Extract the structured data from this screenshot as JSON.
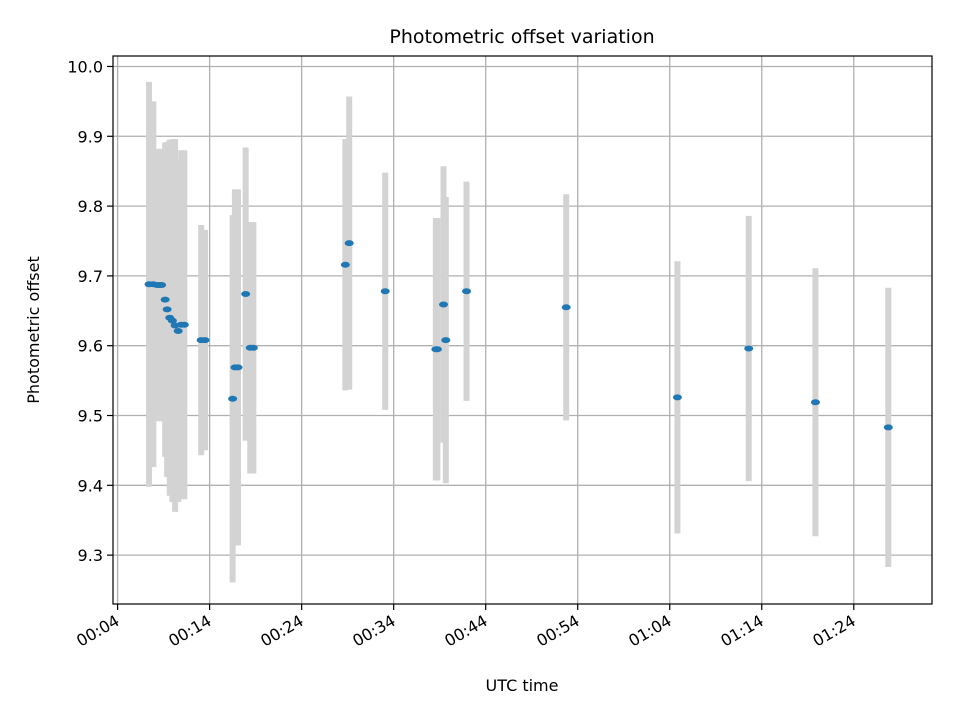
{
  "chart_data": {
    "type": "scatter",
    "title": "Photometric offset variation",
    "xlabel": "UTC time",
    "ylabel": "Photometric offset",
    "x_ticks": [
      "00:04",
      "00:14",
      "00:24",
      "00:34",
      "00:44",
      "00:54",
      "01:04",
      "01:14",
      "01:24"
    ],
    "y_ticks": [
      "9.3",
      "9.4",
      "9.5",
      "9.6",
      "9.7",
      "9.8",
      "9.9",
      "10.0"
    ],
    "xlim": [
      "00:03:30",
      "01:32:30"
    ],
    "ylim": [
      9.23,
      10.015
    ],
    "grid": true,
    "colors": {
      "point": "#1f77b4",
      "errorbar": "#d3d3d3",
      "grid": "#b0b0b0"
    },
    "points": [
      {
        "x": "00:07:25",
        "y": 9.688,
        "err": 0.29
      },
      {
        "x": "00:07:53",
        "y": 9.688,
        "err": 0.262
      },
      {
        "x": "00:08:18",
        "y": 9.687,
        "err": 0.195
      },
      {
        "x": "00:08:33",
        "y": 9.687,
        "err": 0.195
      },
      {
        "x": "00:08:47",
        "y": 9.687,
        "err": 0.195
      },
      {
        "x": "00:09:10",
        "y": 9.666,
        "err": 0.225
      },
      {
        "x": "00:09:23",
        "y": 9.652,
        "err": 0.24
      },
      {
        "x": "00:09:40",
        "y": 9.64,
        "err": 0.255
      },
      {
        "x": "00:09:57",
        "y": 9.636,
        "err": 0.26
      },
      {
        "x": "00:10:15",
        "y": 9.629,
        "err": 0.267
      },
      {
        "x": "00:10:35",
        "y": 9.621,
        "err": 0.245
      },
      {
        "x": "00:10:55",
        "y": 9.63,
        "err": 0.25
      },
      {
        "x": "00:11:15",
        "y": 9.63,
        "err": 0.25
      },
      {
        "x": "00:13:05",
        "y": 9.608,
        "err": 0.165
      },
      {
        "x": "00:13:30",
        "y": 9.608,
        "err": 0.158
      },
      {
        "x": "00:16:30",
        "y": 9.524,
        "err": 0.263
      },
      {
        "x": "00:16:45",
        "y": 9.569,
        "err": 0.255
      },
      {
        "x": "00:17:05",
        "y": 9.569,
        "err": 0.255
      },
      {
        "x": "00:17:55",
        "y": 9.674,
        "err": 0.21
      },
      {
        "x": "00:18:25",
        "y": 9.597,
        "err": 0.18
      },
      {
        "x": "00:18:45",
        "y": 9.597,
        "err": 0.18
      },
      {
        "x": "00:28:45",
        "y": 9.716,
        "err": 0.18
      },
      {
        "x": "00:29:10",
        "y": 9.747,
        "err": 0.21
      },
      {
        "x": "00:33:05",
        "y": 9.678,
        "err": 0.17
      },
      {
        "x": "00:38:35",
        "y": 9.595,
        "err": 0.188
      },
      {
        "x": "00:38:45",
        "y": 9.595,
        "err": 0.188
      },
      {
        "x": "00:39:25",
        "y": 9.659,
        "err": 0.198
      },
      {
        "x": "00:39:40",
        "y": 9.608,
        "err": 0.205
      },
      {
        "x": "00:41:55",
        "y": 9.678,
        "err": 0.157
      },
      {
        "x": "00:52:45",
        "y": 9.655,
        "err": 0.162
      },
      {
        "x": "01:04:50",
        "y": 9.526,
        "err": 0.195
      },
      {
        "x": "01:12:35",
        "y": 9.596,
        "err": 0.19
      },
      {
        "x": "01:19:50",
        "y": 9.519,
        "err": 0.192
      },
      {
        "x": "01:27:45",
        "y": 9.483,
        "err": 0.2
      }
    ]
  }
}
